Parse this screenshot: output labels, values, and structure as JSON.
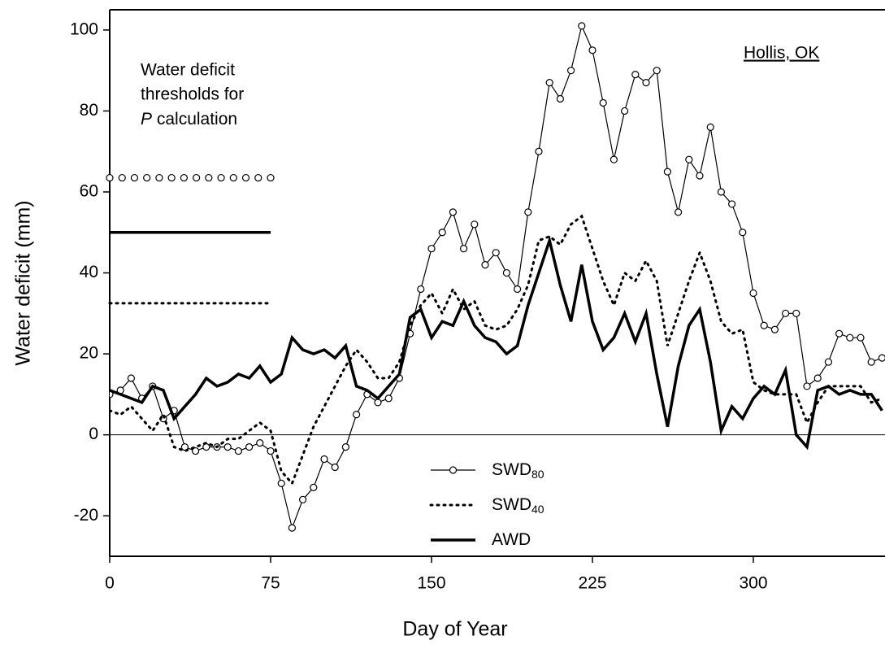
{
  "chart_data": {
    "type": "line",
    "xlabel": "Day of Year",
    "ylabel": "Water deficit (mm)",
    "xlim": [
      0,
      362
    ],
    "ylim": [
      -30,
      105
    ],
    "xticks": [
      0,
      75,
      150,
      225,
      300
    ],
    "yticks": [
      -20,
      0,
      20,
      40,
      60,
      80,
      100
    ],
    "zero_line": true,
    "annotations": {
      "site": "Hollis, OK",
      "thresholds_note": [
        "Water deficit",
        "thresholds for",
        "P",
        " calculation"
      ]
    },
    "reference_x": [
      0,
      75
    ],
    "reference_lines": [
      {
        "style": "circles",
        "value": 63.5
      },
      {
        "style": "solid",
        "value": 50
      },
      {
        "style": "dotted",
        "value": 32.5
      }
    ],
    "x": [
      0,
      5,
      10,
      15,
      20,
      25,
      30,
      35,
      40,
      45,
      50,
      55,
      60,
      65,
      70,
      75,
      80,
      85,
      90,
      95,
      100,
      105,
      110,
      115,
      120,
      125,
      130,
      135,
      140,
      145,
      150,
      155,
      160,
      165,
      170,
      175,
      180,
      185,
      190,
      195,
      200,
      205,
      210,
      215,
      220,
      225,
      230,
      235,
      240,
      245,
      250,
      255,
      260,
      265,
      270,
      275,
      280,
      285,
      290,
      295,
      300,
      305,
      310,
      315,
      320,
      325,
      330,
      335,
      340,
      345,
      350,
      355,
      360
    ],
    "series": [
      {
        "name": "SWD",
        "subscript": "80",
        "style": "circles",
        "color": "#000000",
        "values": [
          10,
          11,
          14,
          9,
          12,
          4,
          6,
          -3,
          -4,
          -3,
          -3,
          -3,
          -4,
          -3,
          -2,
          -4,
          -12,
          -23,
          -16,
          -13,
          -6,
          -8,
          -3,
          5,
          10,
          8,
          9,
          14,
          25,
          36,
          46,
          50,
          55,
          46,
          52,
          42,
          45,
          40,
          36,
          55,
          70,
          87,
          83,
          90,
          101,
          95,
          82,
          68,
          80,
          89,
          87,
          90,
          65,
          55,
          68,
          64,
          76,
          60,
          57,
          50,
          35,
          27,
          26,
          30,
          30,
          12,
          14,
          18,
          25,
          24,
          24,
          18,
          19
        ]
      },
      {
        "name": "SWD",
        "subscript": "40",
        "style": "dotted",
        "color": "#000000",
        "values": [
          6,
          5,
          7,
          4,
          1,
          5,
          -3,
          -4,
          -3,
          -2,
          -3,
          -1,
          -1,
          1,
          3,
          1,
          -9,
          -12,
          -5,
          2,
          7,
          12,
          17,
          21,
          18,
          14,
          14,
          18,
          27,
          32,
          35,
          30,
          36,
          31,
          33,
          27,
          26,
          27,
          31,
          37,
          48,
          49,
          47,
          52,
          54,
          46,
          38,
          32,
          40,
          38,
          43,
          38,
          22,
          30,
          38,
          45,
          38,
          28,
          25,
          26,
          13,
          11,
          10,
          10,
          10,
          3,
          8,
          12,
          12,
          12,
          12,
          8,
          9
        ]
      },
      {
        "name": "AWD",
        "style": "solid",
        "color": "#000000",
        "values": [
          11,
          10,
          9,
          8,
          12,
          11,
          4,
          7,
          10,
          14,
          12,
          13,
          15,
          14,
          17,
          13,
          15,
          24,
          21,
          20,
          21,
          19,
          22,
          12,
          11,
          9,
          12,
          15,
          29,
          31,
          24,
          28,
          27,
          33,
          27,
          24,
          23,
          20,
          22,
          32,
          40,
          48,
          37,
          28,
          42,
          28,
          21,
          24,
          30,
          23,
          30,
          15,
          2,
          17,
          27,
          31,
          18,
          1,
          7,
          4,
          9,
          12,
          10,
          16,
          0,
          -3,
          11,
          12,
          10,
          11,
          10,
          10,
          6
        ]
      }
    ]
  }
}
